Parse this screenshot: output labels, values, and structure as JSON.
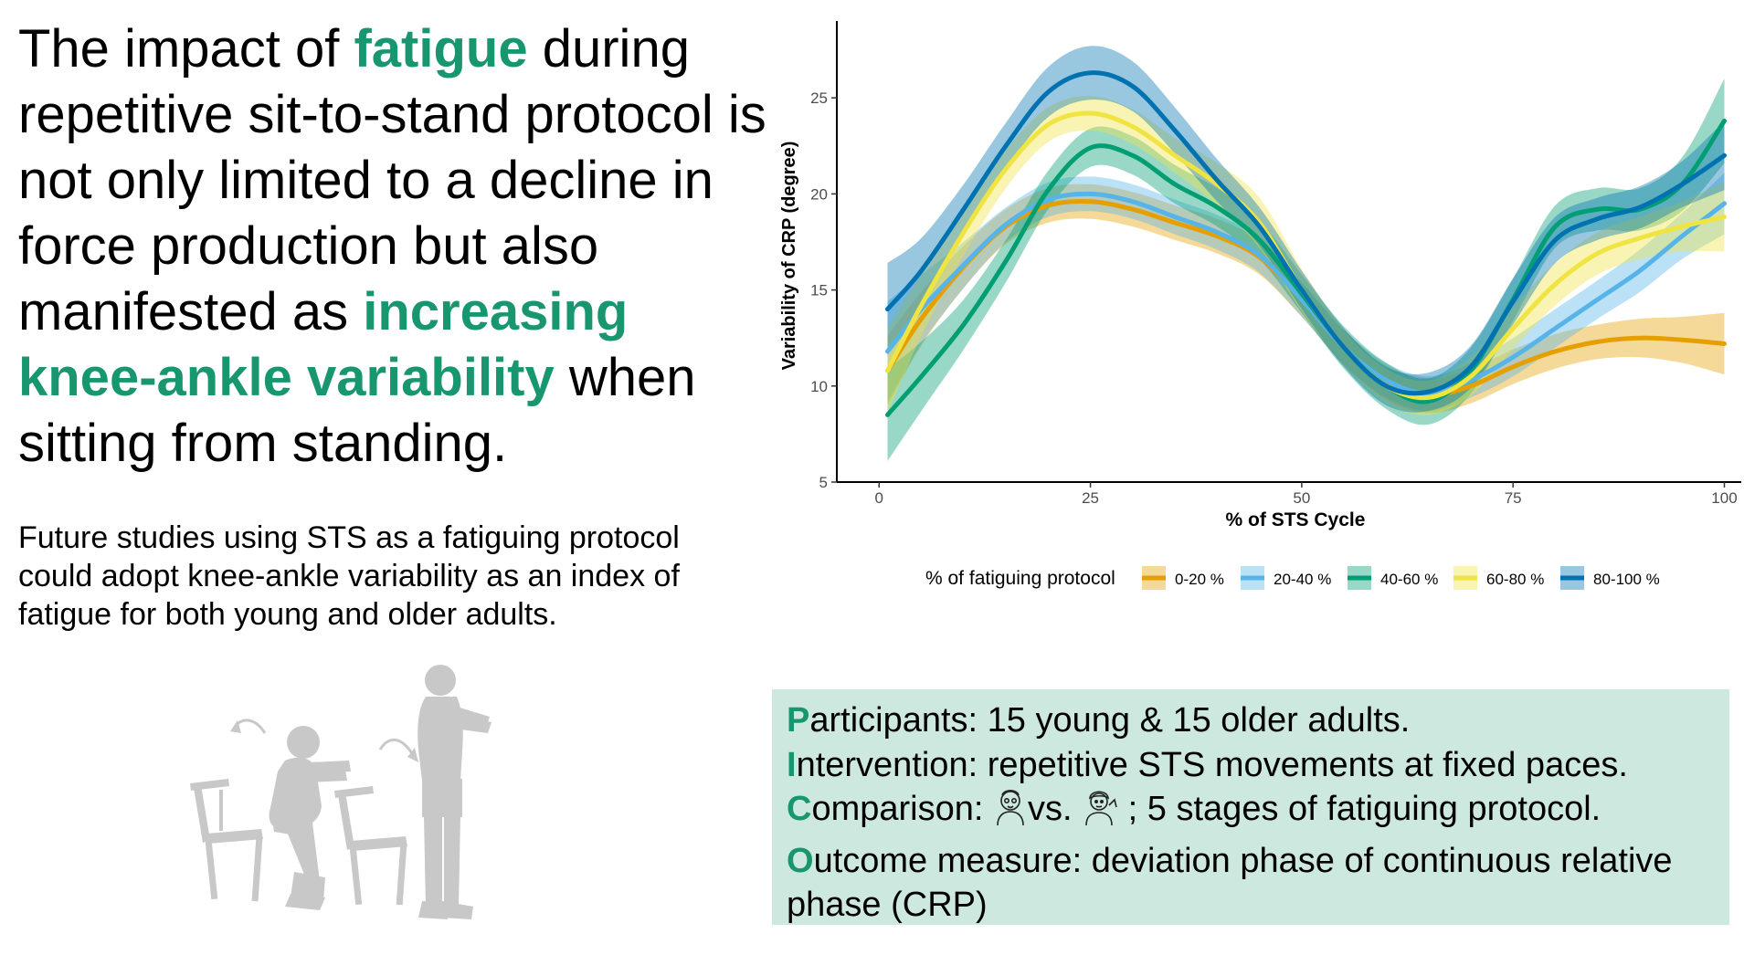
{
  "headline": {
    "part1": "The impact of ",
    "hl1": "fatigue",
    "part2": " during repetitive sit-to-stand protocol is not only limited to a decline in force production but also manifested as ",
    "hl2": "increasing knee-ankle variability",
    "part3": " when sitting from standing."
  },
  "subtext": "Future studies using STS as a fatiguing protocol could adopt knee-ankle variability as an index of fatigue for both young and older adults.",
  "pico": {
    "p_letter": "P",
    "p_text": "articipants: 15 young & 15 older adults.",
    "i_letter": "I",
    "i_text": "ntervention: repetitive STS movements at fixed paces.",
    "c_letter": "C",
    "c_text1": "omparison: ",
    "c_vs": "vs. ",
    "c_text2": " ; 5 stages of fatiguing protocol.",
    "o_letter": "O",
    "o_text": "utcome measure: deviation phase of continuous relative phase (CRP)",
    "icon_older": "older-adult-icon",
    "icon_young": "young-adult-icon"
  },
  "illustration": {
    "icons": [
      "chair-icon",
      "squatting-person-icon",
      "curved-arrow-icon",
      "standing-person-icon"
    ]
  },
  "colors": {
    "accent_green": "#18966f",
    "pico_background": "#cde9df",
    "illustration_gray": "#c8c8c8"
  },
  "chart_data": {
    "type": "line",
    "xlabel": "% of STS Cycle",
    "ylabel": "Variability of CRP (degree)",
    "xlim": [
      -5,
      102
    ],
    "ylim": [
      5,
      29
    ],
    "xticks": [
      0,
      25,
      50,
      75,
      100
    ],
    "yticks": [
      5,
      10,
      15,
      20,
      25
    ],
    "legend_title": "% of fatiguing protocol",
    "legend_position": "bottom",
    "grid": false,
    "confidence_bands": true,
    "x": [
      1,
      5,
      10,
      15,
      20,
      25,
      30,
      35,
      40,
      45,
      50,
      55,
      60,
      65,
      70,
      75,
      80,
      85,
      90,
      95,
      100
    ],
    "series": [
      {
        "name": "0-20 %",
        "color": "#e69f00",
        "values": [
          10.8,
          13.5,
          16.2,
          18.3,
          19.4,
          19.6,
          19.2,
          18.5,
          17.8,
          16.7,
          14.5,
          12.0,
          10.2,
          9.5,
          10.0,
          11.0,
          11.8,
          12.3,
          12.5,
          12.4,
          12.2
        ],
        "band": [
          1.8,
          1.4,
          1.1,
          0.9,
          0.9,
          0.9,
          0.9,
          0.9,
          0.9,
          0.9,
          0.9,
          0.9,
          0.9,
          0.9,
          0.9,
          0.9,
          0.9,
          0.9,
          1.0,
          1.2,
          1.6
        ]
      },
      {
        "name": "20-40 %",
        "color": "#56b4e9",
        "values": [
          11.8,
          14.0,
          16.3,
          18.4,
          19.7,
          20.0,
          19.6,
          18.8,
          18.0,
          16.8,
          14.5,
          12.0,
          10.3,
          9.6,
          10.3,
          11.5,
          13.0,
          14.5,
          16.0,
          17.8,
          19.5
        ],
        "band": [
          2.6,
          1.8,
          1.2,
          0.9,
          0.9,
          0.9,
          0.9,
          0.9,
          0.9,
          0.9,
          0.9,
          0.9,
          0.9,
          0.9,
          0.9,
          1.0,
          1.0,
          1.0,
          1.1,
          1.2,
          1.6
        ]
      },
      {
        "name": "40-60 %",
        "color": "#009e73",
        "values": [
          8.5,
          10.5,
          13.2,
          16.5,
          20.2,
          22.4,
          22.0,
          20.5,
          19.3,
          17.6,
          14.8,
          12.0,
          10.0,
          9.2,
          10.8,
          14.5,
          18.3,
          19.2,
          19.2,
          20.5,
          23.8
        ],
        "band": [
          2.4,
          1.8,
          1.3,
          1.1,
          1.0,
          1.0,
          1.0,
          1.0,
          1.0,
          1.0,
          1.0,
          1.1,
          1.2,
          1.2,
          1.2,
          1.1,
          1.1,
          1.1,
          1.1,
          1.4,
          2.2
        ]
      },
      {
        "name": "60-80 %",
        "color": "#f0e442",
        "values": [
          10.8,
          14.2,
          18.0,
          21.3,
          23.6,
          24.2,
          23.5,
          22.0,
          20.5,
          18.5,
          15.0,
          12.0,
          10.0,
          9.4,
          10.5,
          13.0,
          15.3,
          16.9,
          17.7,
          18.3,
          18.8
        ],
        "band": [
          2.2,
          1.6,
          1.2,
          1.0,
          0.9,
          0.9,
          0.9,
          0.9,
          1.1,
          1.3,
          1.1,
          0.9,
          0.9,
          0.9,
          1.0,
          1.1,
          1.1,
          1.1,
          1.1,
          1.3,
          1.8
        ]
      },
      {
        "name": "80-100 %",
        "color": "#0072b2",
        "values": [
          14.0,
          16.0,
          19.2,
          22.5,
          25.3,
          26.3,
          25.6,
          23.3,
          20.7,
          18.3,
          15.0,
          12.0,
          10.0,
          9.7,
          11.0,
          14.4,
          17.6,
          18.7,
          19.3,
          20.5,
          22.0
        ],
        "band": [
          2.4,
          1.7,
          1.3,
          1.2,
          1.3,
          1.4,
          1.3,
          1.2,
          1.1,
          1.0,
          1.0,
          1.0,
          1.0,
          1.0,
          1.1,
          1.2,
          1.2,
          1.1,
          1.1,
          1.2,
          1.8
        ]
      }
    ]
  }
}
